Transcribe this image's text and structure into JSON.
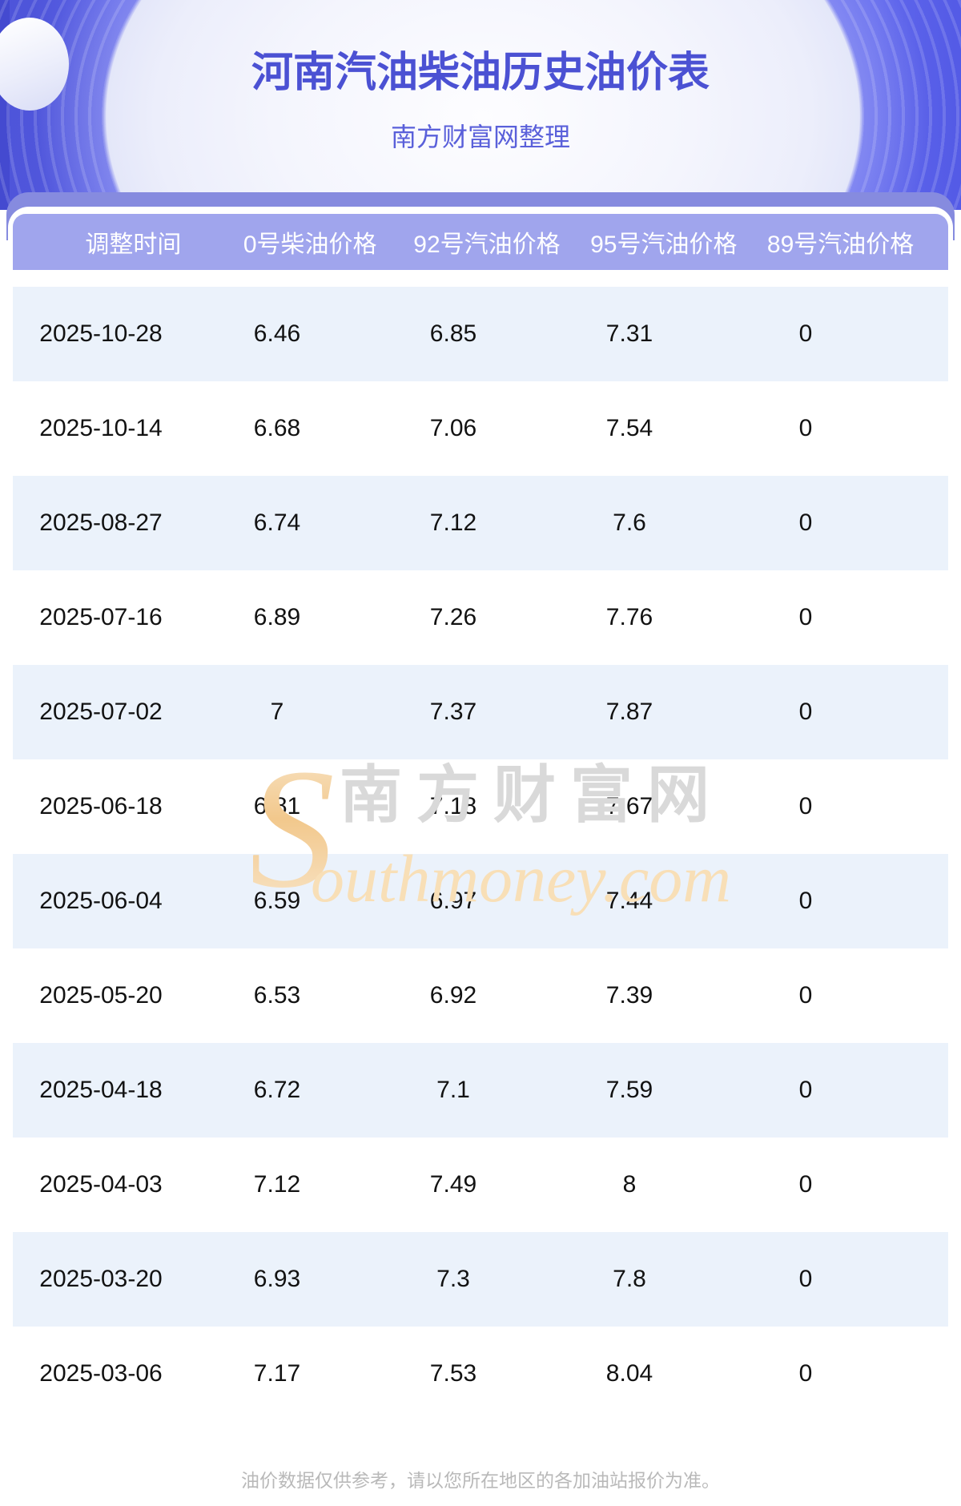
{
  "header": {
    "title": "河南汽油柴油历史油价表",
    "subtitle": "南方财富网整理"
  },
  "chart_data": {
    "type": "table",
    "title": "河南汽油柴油历史油价表",
    "columns": [
      "调整时间",
      "0号柴油价格",
      "92号汽油价格",
      "95号汽油价格",
      "89号汽油价格"
    ],
    "rows": [
      [
        "2025-10-28",
        "6.46",
        "6.85",
        "7.31",
        "0"
      ],
      [
        "2025-10-14",
        "6.68",
        "7.06",
        "7.54",
        "0"
      ],
      [
        "2025-08-27",
        "6.74",
        "7.12",
        "7.6",
        "0"
      ],
      [
        "2025-07-16",
        "6.89",
        "7.26",
        "7.76",
        "0"
      ],
      [
        "2025-07-02",
        "7",
        "7.37",
        "7.87",
        "0"
      ],
      [
        "2025-06-18",
        "6.81",
        "7.18",
        "7.67",
        "0"
      ],
      [
        "2025-06-04",
        "6.59",
        "6.97",
        "7.44",
        "0"
      ],
      [
        "2025-05-20",
        "6.53",
        "6.92",
        "7.39",
        "0"
      ],
      [
        "2025-04-18",
        "6.72",
        "7.1",
        "7.59",
        "0"
      ],
      [
        "2025-04-03",
        "7.12",
        "7.49",
        "8",
        "0"
      ],
      [
        "2025-03-20",
        "6.93",
        "7.3",
        "7.8",
        "0"
      ],
      [
        "2025-03-06",
        "7.17",
        "7.53",
        "8.04",
        "0"
      ]
    ]
  },
  "watermark": {
    "initial": "S",
    "cn": "南方财富网",
    "en": "outhmoney.com"
  },
  "footer": {
    "note": "油价数据仅供参考，请以您所在地区的各加油站报价为准。"
  },
  "colors": {
    "hero_purple": "#646cf1",
    "band_purple": "#868bdf",
    "header_row_purple": "#a0a5ed",
    "alt_row_blue": "#ebf2fb",
    "title_text": "#4b51d3",
    "subtitle_text": "#5a60da",
    "body_text": "#121212",
    "footer_text": "#b9b9b9",
    "watermark_gray": "#d9d9d9",
    "watermark_orange": "#f8dfb7"
  }
}
